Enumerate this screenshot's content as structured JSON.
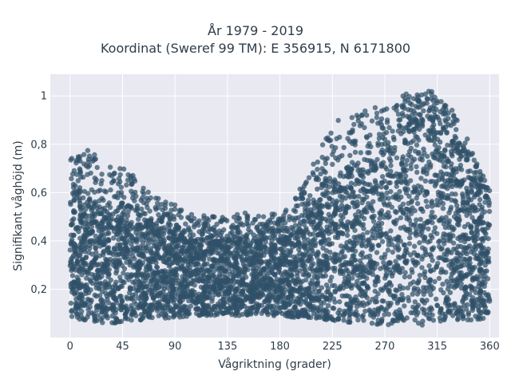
{
  "chart_data": {
    "type": "scatter",
    "title": "År 1979 - 2019",
    "subtitle": "Koordinat (Sweref 99 TM): E 356915, N 6171800",
    "xlabel": "Vågriktning (grader)",
    "ylabel": "Signifikant våghöjd (m)",
    "xlim": [
      -17,
      368
    ],
    "ylim": [
      0.0,
      1.09
    ],
    "x_ticks": [
      0,
      45,
      90,
      135,
      180,
      225,
      270,
      315,
      360
    ],
    "y_ticks": [
      0.2,
      0.4,
      0.6,
      0.8,
      1
    ],
    "x_tick_labels": [
      "0",
      "45",
      "90",
      "135",
      "180",
      "225",
      "270",
      "315",
      "360"
    ],
    "y_tick_labels": [
      "0,2",
      "0,4",
      "0,6",
      "0,8",
      "1"
    ],
    "grid": true,
    "marker_color": "#2f5068",
    "plot_background": "#e9e9f1",
    "envelope": {
      "direction_deg": [
        0,
        15,
        30,
        45,
        60,
        75,
        90,
        105,
        120,
        135,
        150,
        165,
        180,
        195,
        210,
        225,
        240,
        255,
        270,
        285,
        300,
        315,
        330,
        345,
        360
      ],
      "lower_m": [
        0.08,
        0.07,
        0.06,
        0.06,
        0.07,
        0.08,
        0.08,
        0.09,
        0.09,
        0.09,
        0.09,
        0.09,
        0.09,
        0.08,
        0.08,
        0.07,
        0.06,
        0.06,
        0.05,
        0.05,
        0.05,
        0.06,
        0.07,
        0.07,
        0.08
      ],
      "upper_m": [
        0.74,
        0.8,
        0.7,
        0.73,
        0.64,
        0.58,
        0.55,
        0.51,
        0.51,
        0.5,
        0.52,
        0.5,
        0.52,
        0.6,
        0.75,
        0.9,
        0.92,
        0.96,
        0.95,
        1.01,
        1.01,
        1.03,
        0.93,
        0.78,
        0.62
      ],
      "core_upper_m": [
        0.55,
        0.55,
        0.52,
        0.52,
        0.47,
        0.44,
        0.42,
        0.4,
        0.4,
        0.39,
        0.39,
        0.39,
        0.4,
        0.44,
        0.55,
        0.62,
        0.68,
        0.72,
        0.75,
        0.85,
        0.92,
        0.9,
        0.8,
        0.65,
        0.55
      ]
    }
  }
}
